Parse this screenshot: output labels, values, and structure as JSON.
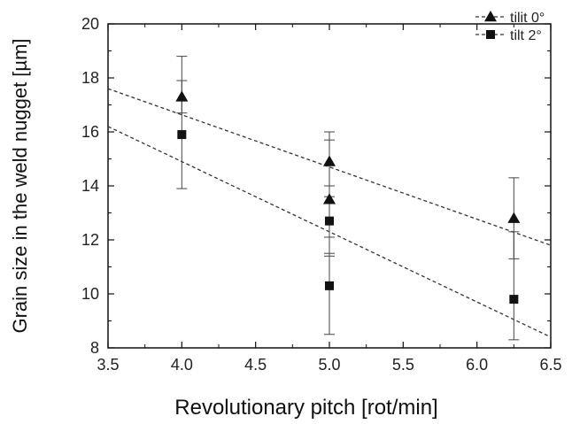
{
  "chart_data": {
    "type": "scatter",
    "xlabel": "Revolutionary pitch [rot/min]",
    "ylabel": "Grain size in the weld nugget [µm]",
    "xlim": [
      3.5,
      6.5
    ],
    "ylim": [
      8,
      20
    ],
    "x_ticks": [
      "3.5",
      "4.0",
      "4.5",
      "5.0",
      "5.5",
      "6.0",
      "6.5"
    ],
    "y_ticks": [
      "8",
      "10",
      "12",
      "14",
      "16",
      "18",
      "20"
    ],
    "grid": false,
    "legend_position": "top-right",
    "series": [
      {
        "name": "tilit 0°",
        "marker": "triangle",
        "color": "#111111",
        "points": [
          {
            "x": 4.0,
            "y": 17.3,
            "err_low": 16.7,
            "err_high": 18.8
          },
          {
            "x": 5.0,
            "y": 14.9,
            "err_low": 13.6,
            "err_high": 16.0
          },
          {
            "x": 5.0,
            "y": 13.5,
            "err_low": 11.5,
            "err_high": 15.7
          },
          {
            "x": 6.25,
            "y": 12.8,
            "err_low": 11.3,
            "err_high": 14.3
          }
        ],
        "trend": {
          "from": [
            3.5,
            17.6
          ],
          "to": [
            6.5,
            11.8
          ]
        }
      },
      {
        "name": "tilt 2°",
        "marker": "square",
        "color": "#111111",
        "points": [
          {
            "x": 4.0,
            "y": 15.9,
            "err_low": 13.9,
            "err_high": 17.9
          },
          {
            "x": 5.0,
            "y": 12.7,
            "err_low": 11.4,
            "err_high": 14.0
          },
          {
            "x": 5.0,
            "y": 10.3,
            "err_low": 8.5,
            "err_high": 12.1
          },
          {
            "x": 6.25,
            "y": 9.8,
            "err_low": 8.3,
            "err_high": 12.3
          }
        ],
        "trend": {
          "from": [
            3.5,
            16.2
          ],
          "to": [
            6.5,
            8.4
          ]
        }
      }
    ]
  }
}
